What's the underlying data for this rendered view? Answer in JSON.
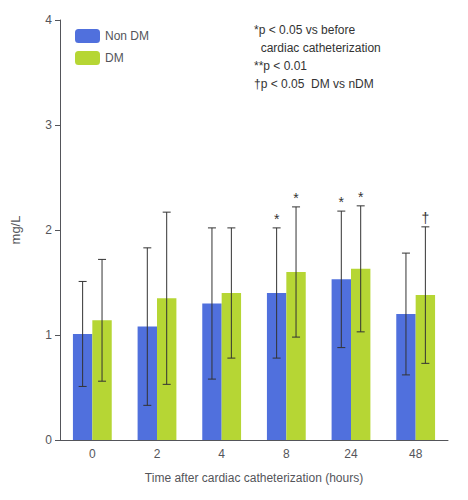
{
  "chart_data": {
    "type": "bar",
    "xlabel": "Time after cardiac catheterization (hours)",
    "ylabel": "mg/L",
    "categories": [
      "0",
      "2",
      "4",
      "8",
      "24",
      "48"
    ],
    "series": [
      {
        "name": "Non DM",
        "values": [
          1.01,
          1.08,
          1.3,
          1.4,
          1.53,
          1.2
        ],
        "errors": [
          0.5,
          0.75,
          0.72,
          0.62,
          0.65,
          0.58
        ],
        "markers": [
          null,
          null,
          null,
          "*",
          "*",
          null
        ]
      },
      {
        "name": "DM",
        "values": [
          1.14,
          1.35,
          1.4,
          1.6,
          1.63,
          1.38
        ],
        "errors": [
          0.58,
          0.82,
          0.62,
          0.62,
          0.6,
          0.65
        ],
        "markers": [
          null,
          null,
          null,
          "*",
          "*",
          "†"
        ]
      }
    ],
    "annotations": [
      "*p < 0.05 vs before",
      "  cardiac catheterization",
      "**p < 0.01",
      "†p < 0.05  DM vs nDM"
    ],
    "ylim": [
      0,
      4.0
    ],
    "yticks": [
      0,
      1,
      2,
      3,
      4
    ],
    "grid": false,
    "legend": "upper left"
  }
}
